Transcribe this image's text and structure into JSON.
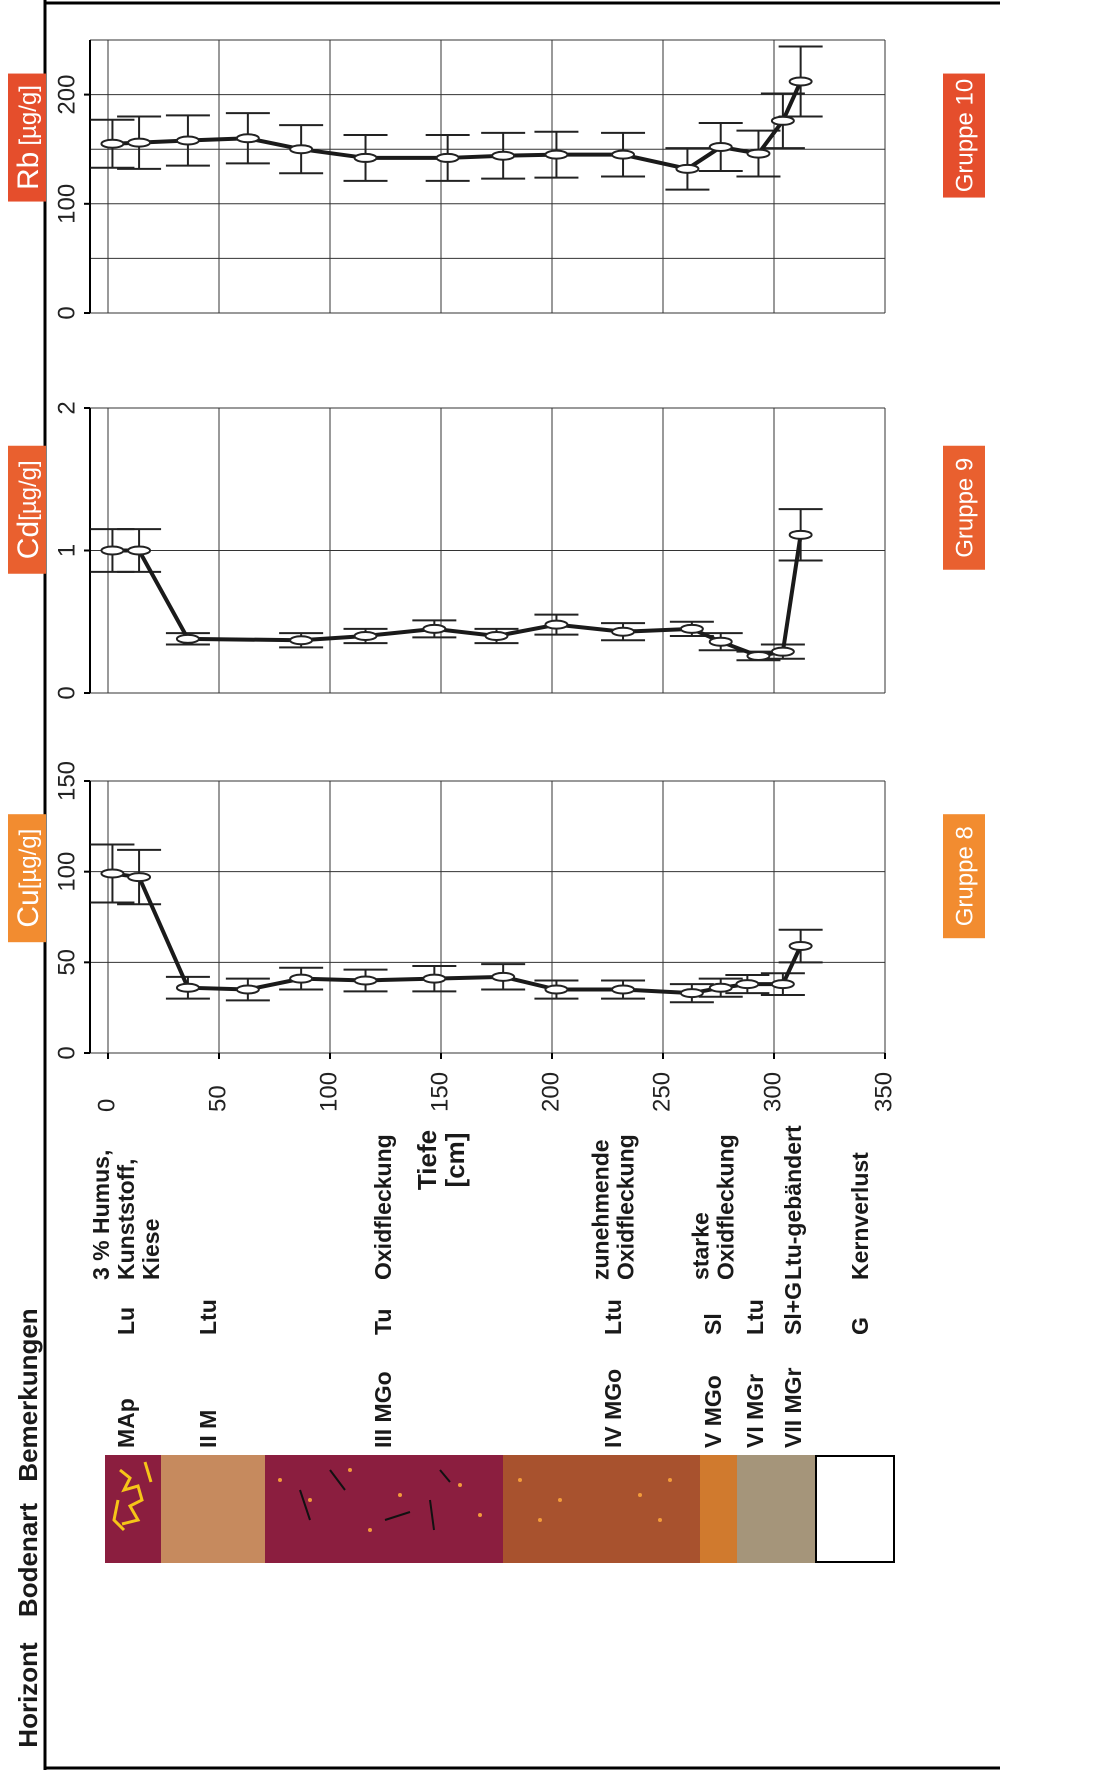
{
  "chart_data": [
    {
      "type": "line",
      "element": "Cu",
      "unit": "[µg/g]",
      "group": "Gruppe 8",
      "label_color": "#f28c30",
      "color": "#1a1a1a",
      "x": [
        2,
        14,
        36,
        63,
        87,
        116,
        147,
        178,
        202,
        232,
        263,
        276,
        288,
        304,
        312
      ],
      "values": [
        99,
        97,
        36,
        35,
        41,
        40,
        41,
        42,
        35,
        35,
        33,
        36,
        38,
        38,
        59
      ],
      "errors": [
        16,
        15,
        6,
        6,
        6,
        6,
        7,
        7,
        5,
        5,
        5,
        5,
        5,
        6,
        9
      ],
      "xlim": [
        0,
        350
      ],
      "xticks": [
        0,
        50,
        100,
        150,
        200,
        250,
        300,
        350
      ],
      "xlabel": "Tiefe [cm]",
      "ylim": [
        0,
        150
      ],
      "yticks": [
        0,
        50,
        100,
        150
      ],
      "grid": true
    },
    {
      "type": "line",
      "element": "Cd",
      "unit": "[µg/g]",
      "group": "Gruppe 9",
      "label_color": "#e9602f",
      "color": "#1a1a1a",
      "x": [
        2,
        14,
        36,
        87,
        116,
        147,
        175,
        202,
        232,
        263,
        276,
        293,
        304,
        312
      ],
      "values": [
        1.0,
        1.0,
        0.38,
        0.37,
        0.4,
        0.45,
        0.4,
        0.48,
        0.43,
        0.45,
        0.36,
        0.26,
        0.29,
        1.11
      ],
      "errors": [
        0.15,
        0.15,
        0.04,
        0.05,
        0.05,
        0.06,
        0.05,
        0.07,
        0.06,
        0.05,
        0.06,
        0.03,
        0.05,
        0.18
      ],
      "xlim": [
        0,
        350
      ],
      "xticks": [
        0,
        50,
        100,
        150,
        200,
        250,
        300,
        350
      ],
      "ylim": [
        0,
        2
      ],
      "yticks": [
        0,
        1,
        2
      ],
      "grid": true
    },
    {
      "type": "line",
      "element": "Rb",
      "unit": "[µg/g]",
      "group": "Gruppe 10",
      "label_color": "#e54e2c",
      "color": "#1a1a1a",
      "x": [
        2,
        14,
        36,
        63,
        87,
        116,
        153,
        178,
        202,
        232,
        261,
        276,
        293,
        304,
        312
      ],
      "values": [
        155,
        156,
        158,
        160,
        150,
        142,
        142,
        144,
        145,
        145,
        132,
        152,
        146,
        176,
        212
      ],
      "errors": [
        22,
        24,
        23,
        23,
        22,
        21,
        21,
        21,
        21,
        20,
        19,
        22,
        21,
        25,
        32
      ],
      "xlim": [
        0,
        350
      ],
      "xticks": [
        0,
        50,
        100,
        150,
        200,
        250,
        300,
        350
      ],
      "ylim": [
        0,
        250
      ],
      "yticks": [
        0,
        100,
        200
      ],
      "grid_yticks": [
        0,
        50,
        100,
        150,
        200,
        250
      ],
      "grid": true
    }
  ],
  "profile": {
    "headers": [
      "Horizont",
      "Bodenart",
      "Bemerkungen"
    ],
    "rows": [
      {
        "horizont": "MAp",
        "bodenart": "Lu",
        "bemerkungen": [
          "3 % Humus,",
          "Kunststoff,",
          "Kiese"
        ]
      },
      {
        "horizont": "II M",
        "bodenart": "Ltu"
      },
      {
        "horizont": "III MGo",
        "bodenart": "Tu",
        "bemerkungen": [
          "Oxidfleckung"
        ]
      },
      {
        "horizont": "IV MGo",
        "bodenart": "Ltu",
        "bemerkungen": [
          "zunehmende",
          "Oxidfleckung"
        ]
      },
      {
        "horizont": "V MGo",
        "bodenart": "Sl",
        "bemerkungen": [
          "starke",
          "Oxidfleckung"
        ]
      },
      {
        "horizont": "VI MGr",
        "bodenart": "Ltu"
      },
      {
        "horizont": "VII MGr",
        "bodenart": "Sl+G",
        "bemerkungen": [
          "Ltu-gebändert"
        ]
      },
      {
        "bodenart": "G",
        "bemerkungen": [
          "Kernverlust"
        ]
      }
    ]
  }
}
